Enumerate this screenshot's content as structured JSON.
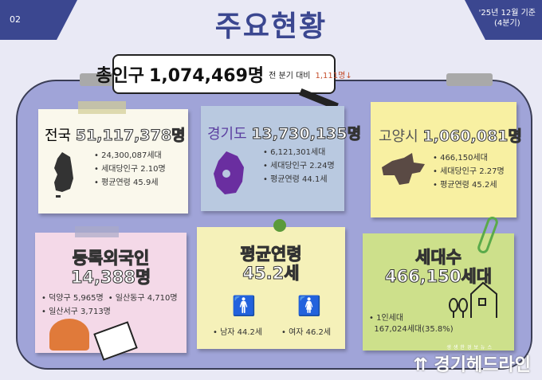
{
  "header": {
    "page_number": "02",
    "title": "주요현황",
    "date_line1": "'25년 12월 기준",
    "date_line2": "(4분기)"
  },
  "total": {
    "label": "총인구",
    "value": "1,074,469명",
    "compare_label": "전 분기 대비",
    "change": "1,111명↓"
  },
  "cards": {
    "national": {
      "name": "전국",
      "population": "51,117,378명",
      "items": [
        "24,300,087세대",
        "세대당인구 2.10명",
        "평균연령 45.9세"
      ]
    },
    "gyeonggi": {
      "name": "경기도",
      "population": "13,730,135명",
      "items": [
        "6,121,301세대",
        "세대당인구 2.24명",
        "평균연령 44.1세"
      ]
    },
    "goyang": {
      "name": "고양시",
      "population": "1,060,081명",
      "items": [
        "466,150세대",
        "세대당인구 2.27명",
        "평균연령 45.2세"
      ]
    },
    "foreigners": {
      "title": "등록외국인",
      "value": "14,388명",
      "items": [
        "덕양구 5,965명",
        "일산동구 4,710명",
        "일산서구 3,713명"
      ]
    },
    "age": {
      "title": "평균연령",
      "value": "45.2세",
      "male": "남자 44.2세",
      "female": "여자 46.2세"
    },
    "households": {
      "title": "세대수",
      "value": "466,150세대",
      "single_label": "1인세대",
      "single_value": "167,024세대(35.8%)"
    }
  },
  "logo": {
    "slogan": "생생한경보뉴스",
    "name": "경기헤드라인"
  },
  "colors": {
    "navy": "#3b4790",
    "panel": "#a0a4d8",
    "red": "#c5502f"
  }
}
